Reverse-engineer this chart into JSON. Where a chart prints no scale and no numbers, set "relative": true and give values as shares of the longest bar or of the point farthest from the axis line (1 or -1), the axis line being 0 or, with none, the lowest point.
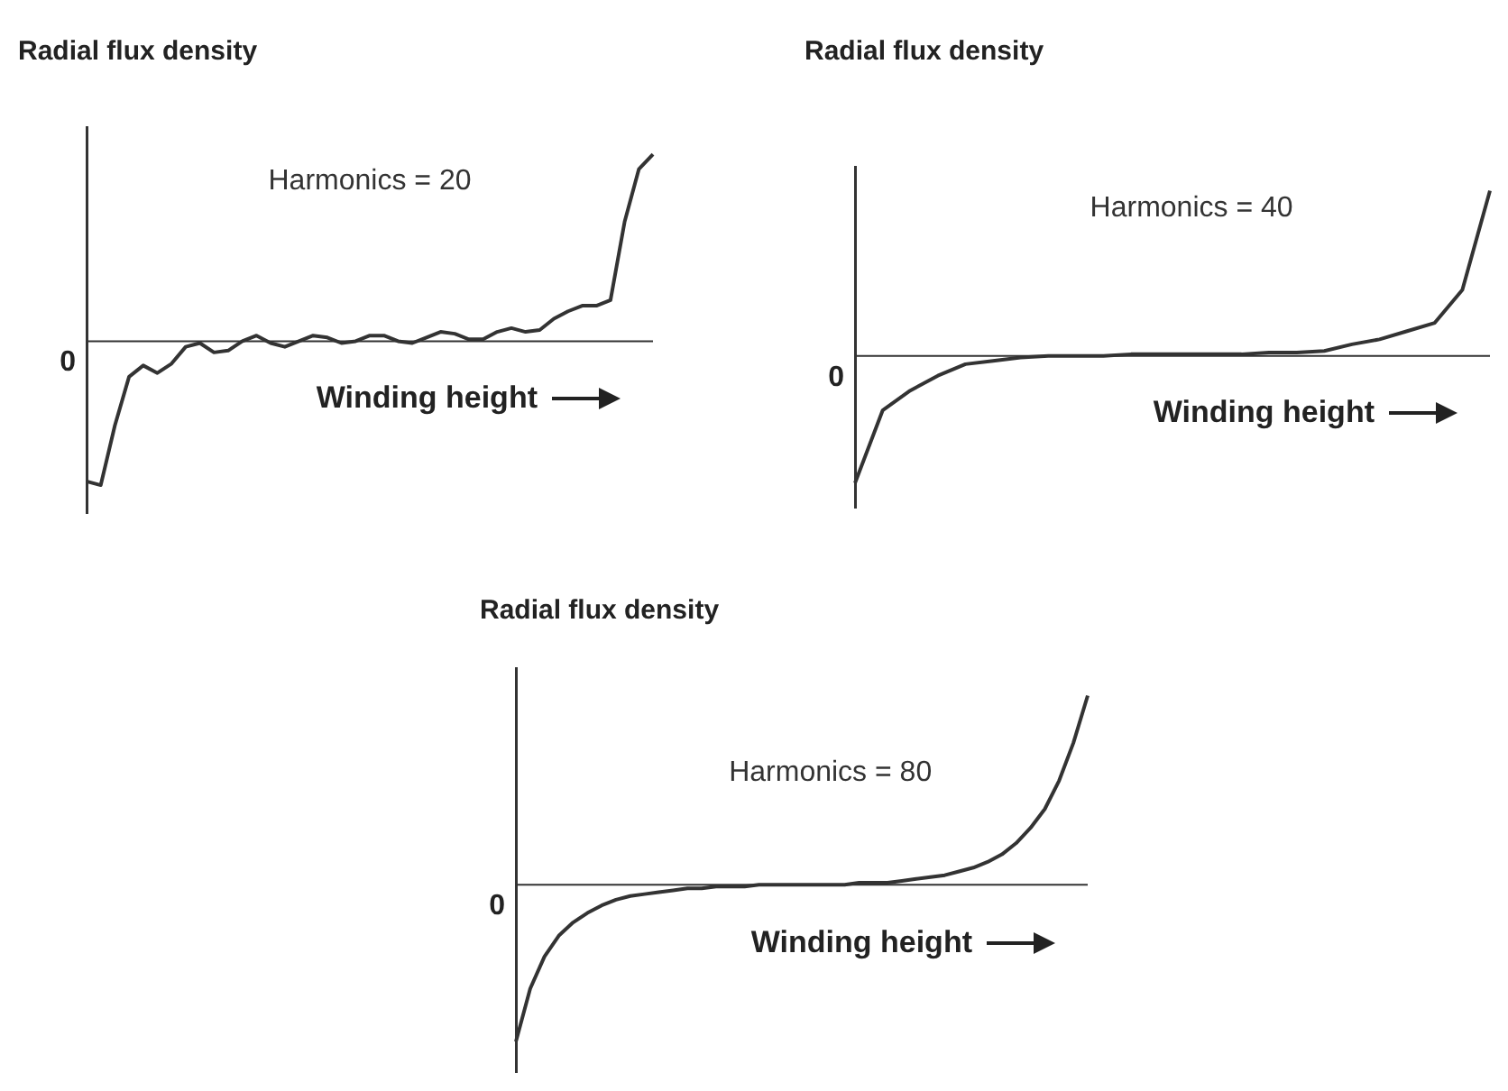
{
  "chart_data": [
    {
      "type": "line",
      "title": "Radial flux density",
      "xlabel": "Winding height",
      "annotations": [
        "Harmonics = 20"
      ],
      "relative": true,
      "categories": [
        null,
        null,
        null,
        null,
        null,
        null,
        null,
        null,
        null,
        null,
        null,
        null,
        null,
        null,
        null,
        null,
        null,
        null,
        null,
        null,
        null,
        null,
        null,
        null,
        null,
        null,
        null,
        null,
        null,
        null,
        null,
        null,
        null,
        null,
        null,
        null,
        null,
        null,
        null,
        null,
        null
      ],
      "series": [
        {
          "color": "#333333",
          "values": [
            -0.75,
            -0.77,
            -0.45,
            -0.19,
            -0.13,
            -0.17,
            -0.12,
            -0.03,
            -0.01,
            -0.06,
            -0.05,
            0,
            0.03,
            -0.01,
            -0.03,
            0,
            0.03,
            0.02,
            -0.01,
            0,
            0.03,
            0.03,
            0,
            -0.01,
            0.02,
            0.05,
            0.04,
            0.01,
            0.01,
            0.05,
            0.07,
            0.05,
            0.06,
            0.12,
            0.16,
            0.19,
            0.19,
            0.22,
            0.64,
            0.92,
            1
          ]
        }
      ],
      "ref_lines": [
        {
          "axis": "y",
          "value": 0,
          "label": "0"
        }
      ]
    },
    {
      "type": "line",
      "title": "Radial flux density",
      "xlabel": "Winding height",
      "annotations": [
        "Harmonics = 40"
      ],
      "relative": true,
      "categories": [
        null,
        null,
        null,
        null,
        null,
        null,
        null,
        null,
        null,
        null,
        null,
        null,
        null,
        null,
        null,
        null,
        null,
        null,
        null,
        null,
        null,
        null,
        null,
        null
      ],
      "series": [
        {
          "color": "#333333",
          "values": [
            -0.77,
            -0.33,
            -0.21,
            -0.12,
            -0.05,
            -0.03,
            -0.01,
            0,
            0,
            0,
            0.01,
            0.01,
            0.01,
            0.01,
            0.01,
            0.02,
            0.02,
            0.03,
            0.07,
            0.1,
            0.15,
            0.2,
            0.4,
            1
          ]
        }
      ],
      "ref_lines": [
        {
          "axis": "y",
          "value": 0,
          "label": "0"
        }
      ]
    },
    {
      "type": "line",
      "title": "Radial flux density",
      "xlabel": "Winding height",
      "annotations": [
        "Harmonics = 80"
      ],
      "relative": true,
      "categories": [
        null,
        null,
        null,
        null,
        null,
        null,
        null,
        null,
        null,
        null,
        null,
        null,
        null,
        null,
        null,
        null,
        null,
        null,
        null,
        null,
        null,
        null,
        null,
        null,
        null,
        null,
        null,
        null,
        null,
        null,
        null,
        null,
        null,
        null,
        null,
        null,
        null,
        null,
        null,
        null,
        null
      ],
      "series": [
        {
          "color": "#333333",
          "values": [
            -0.83,
            -0.55,
            -0.38,
            -0.27,
            -0.2,
            -0.15,
            -0.11,
            -0.08,
            -0.06,
            -0.05,
            -0.04,
            -0.03,
            -0.02,
            -0.02,
            -0.01,
            -0.01,
            -0.01,
            0,
            0,
            0,
            0,
            0,
            0,
            0,
            0.01,
            0.01,
            0.01,
            0.02,
            0.03,
            0.04,
            0.05,
            0.07,
            0.09,
            0.12,
            0.16,
            0.22,
            0.3,
            0.4,
            0.55,
            0.75,
            1
          ]
        }
      ],
      "ref_lines": [
        {
          "axis": "y",
          "value": 0,
          "label": "0"
        }
      ]
    }
  ]
}
